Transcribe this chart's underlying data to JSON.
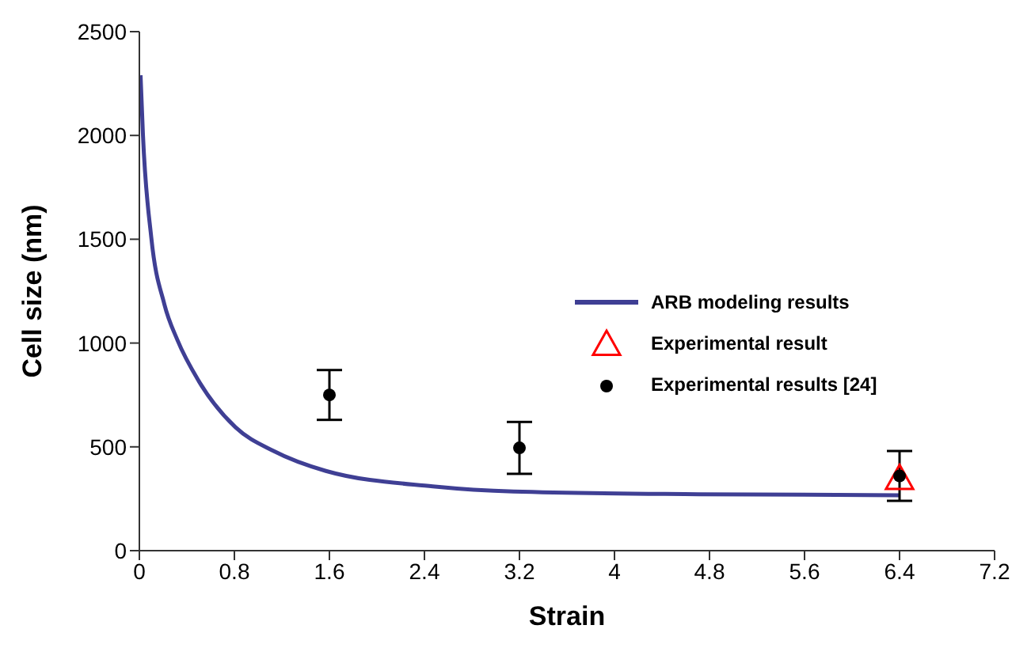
{
  "chart_data": {
    "type": "line",
    "xlabel": "Strain",
    "ylabel": "Cell size (nm)",
    "xlim": [
      0,
      7.2
    ],
    "xticks": [
      0,
      0.8,
      1.6,
      2.4,
      3.2,
      4,
      4.8,
      5.6,
      6.4,
      7.2
    ],
    "ylim": [
      0,
      2500
    ],
    "yticks": [
      0,
      500,
      1000,
      1500,
      2000,
      2500
    ],
    "grid": false,
    "legend": "right",
    "series": [
      {
        "name": "ARB modeling results",
        "color": "#3f3f94",
        "marker": "none",
        "x": [
          0.01,
          0.03,
          0.1,
          0.21,
          0.32,
          0.5,
          0.81,
          1.13,
          1.57,
          2.47,
          3.15,
          4.71,
          6.4
        ],
        "values": [
          2290,
          2005,
          1510,
          1188,
          1015,
          817,
          594,
          480,
          384,
          310,
          285,
          272,
          267
        ]
      },
      {
        "name": "Experimental result",
        "type": "scatter",
        "color": "#ff0000",
        "marker": "triangle",
        "x": [
          6.4
        ],
        "values": [
          345
        ]
      },
      {
        "name": "Experimental results [24]",
        "type": "scatter",
        "color": "#000000",
        "marker": "circle",
        "x": [
          1.6,
          3.2,
          6.4
        ],
        "values": [
          750,
          495,
          360
        ],
        "errors": [
          120,
          125,
          120
        ]
      }
    ]
  }
}
